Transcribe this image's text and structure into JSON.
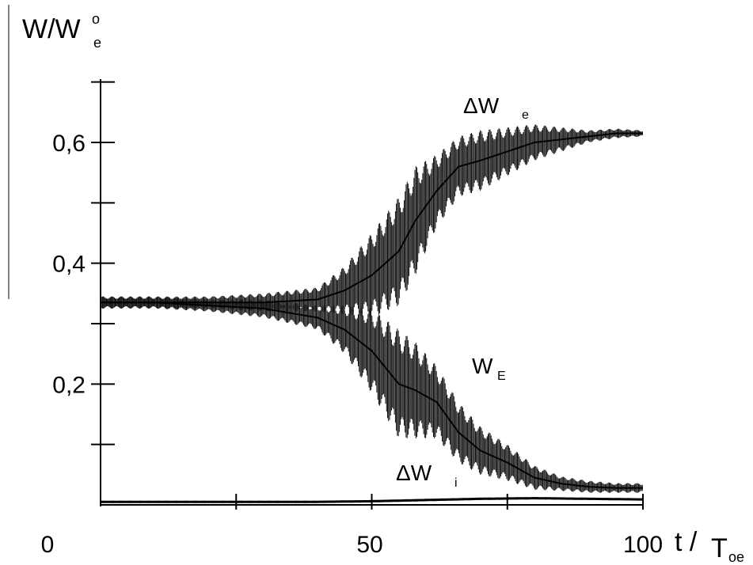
{
  "chart_data": {
    "type": "line",
    "title": "",
    "xlabel": {
      "main": "t /",
      "sub_base": "T",
      "sub": "oe"
    },
    "ylabel": {
      "main": "W/W",
      "sup": "o",
      "sub": "e"
    },
    "xlim": [
      0,
      100
    ],
    "ylim": [
      0,
      0.7
    ],
    "xticks": [
      0,
      50,
      100
    ],
    "xtick_labels": [
      "0",
      "50",
      "100"
    ],
    "yticks": [
      0.2,
      0.4,
      0.6
    ],
    "ytick_labels": [
      "0,2",
      "0,4",
      "0,6"
    ],
    "grid": false,
    "series": [
      {
        "name": "ΔW_e",
        "label_main": "ΔW",
        "label_sub": "e",
        "x": [
          0,
          10,
          20,
          30,
          40,
          45,
          50,
          55,
          58,
          62,
          66,
          70,
          75,
          80,
          85,
          90,
          95,
          100
        ],
        "y": [
          0.335,
          0.335,
          0.335,
          0.335,
          0.34,
          0.355,
          0.38,
          0.42,
          0.47,
          0.52,
          0.56,
          0.57,
          0.585,
          0.6,
          0.605,
          0.61,
          0.615,
          0.615
        ],
        "band": [
          0.01,
          0.01,
          0.01,
          0.015,
          0.02,
          0.04,
          0.07,
          0.09,
          0.09,
          0.06,
          0.05,
          0.05,
          0.04,
          0.03,
          0.02,
          0.01,
          0.008,
          0.005
        ]
      },
      {
        "name": "W_E",
        "label_main": "W",
        "label_sub": "E",
        "x": [
          0,
          10,
          20,
          30,
          40,
          45,
          50,
          55,
          58,
          62,
          66,
          70,
          75,
          80,
          85,
          90,
          95,
          100
        ],
        "y": [
          0.335,
          0.335,
          0.33,
          0.325,
          0.31,
          0.29,
          0.255,
          0.2,
          0.19,
          0.17,
          0.12,
          0.09,
          0.07,
          0.045,
          0.035,
          0.03,
          0.028,
          0.028
        ],
        "band": [
          0.01,
          0.01,
          0.01,
          0.015,
          0.02,
          0.04,
          0.07,
          0.09,
          0.08,
          0.06,
          0.05,
          0.04,
          0.03,
          0.02,
          0.012,
          0.01,
          0.008,
          0.008
        ]
      },
      {
        "name": "ΔW_i",
        "label_main": "ΔW",
        "label_sub": "i",
        "x": [
          0,
          20,
          40,
          50,
          60,
          70,
          80,
          90,
          100
        ],
        "y": [
          0.005,
          0.005,
          0.005,
          0.006,
          0.008,
          0.01,
          0.011,
          0.01,
          0.009
        ],
        "band": [
          0.002,
          0.002,
          0.002,
          0.002,
          0.002,
          0.002,
          0.002,
          0.002,
          0.002
        ]
      }
    ]
  }
}
